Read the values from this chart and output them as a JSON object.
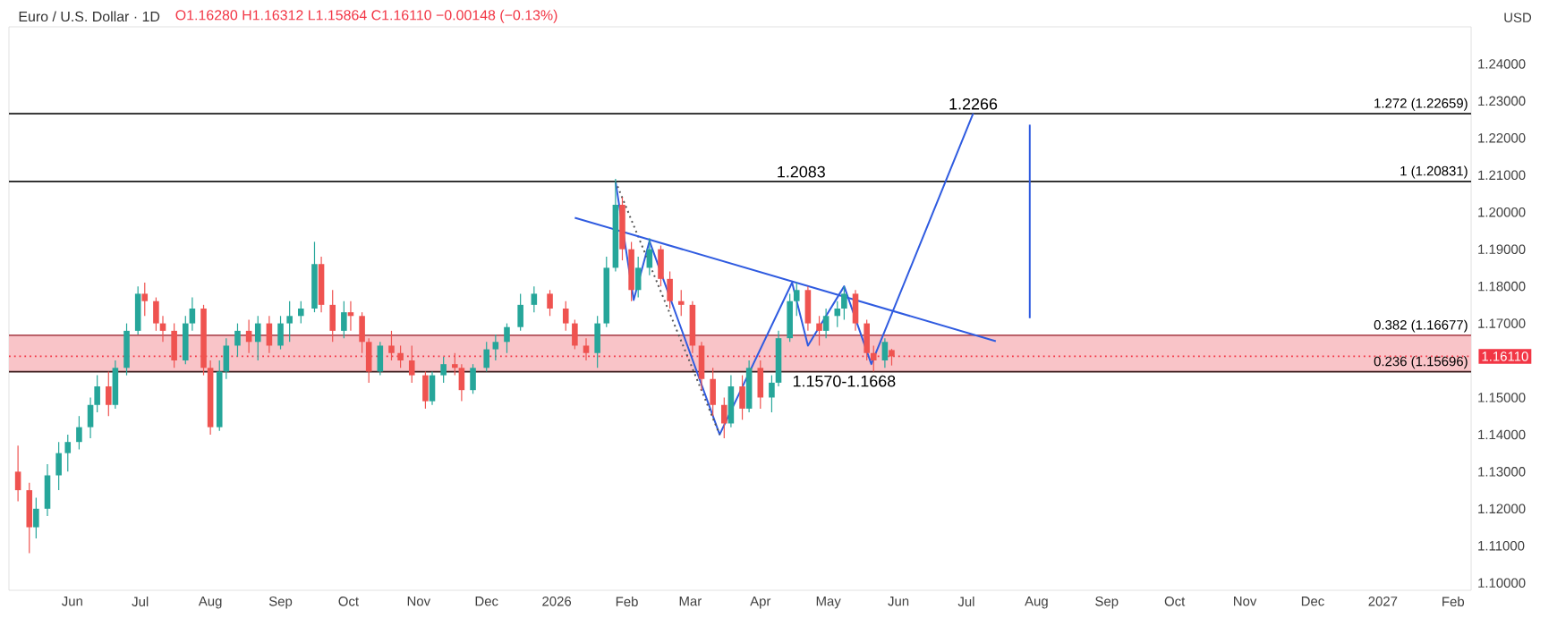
{
  "chart_data": {
    "type": "candlestick",
    "title": "Euro / U.S. Dollar · 1D",
    "subtitle": "O1.16280 H1.16312 L1.15864 C1.16110 −0.00148 (−0.13%)",
    "ylabel": "USD",
    "x": [
      "2025-05-08",
      "2025-05-13",
      "2025-05-16",
      "2025-05-21",
      "2025-05-26",
      "2025-05-30",
      "2025-06-04",
      "2025-06-09",
      "2025-06-12",
      "2025-06-17",
      "2025-06-20",
      "2025-06-25",
      "2025-06-30",
      "2025-07-03",
      "2025-07-08",
      "2025-07-11",
      "2025-07-16",
      "2025-07-21",
      "2025-07-24",
      "2025-07-29",
      "2025-08-01",
      "2025-08-05",
      "2025-08-08",
      "2025-08-13",
      "2025-08-18",
      "2025-08-22",
      "2025-08-27",
      "2025-09-01",
      "2025-09-05",
      "2025-09-10",
      "2025-09-16",
      "2025-09-19",
      "2025-09-24",
      "2025-09-29",
      "2025-10-02",
      "2025-10-07",
      "2025-10-10",
      "2025-10-15",
      "2025-10-20",
      "2025-10-24",
      "2025-10-29",
      "2025-11-04",
      "2025-11-07",
      "2025-11-12",
      "2025-11-17",
      "2025-11-20",
      "2025-11-25",
      "2025-12-01",
      "2025-12-05",
      "2025-12-10",
      "2025-12-16",
      "2025-12-22",
      "2025-12-29",
      "2026-01-05",
      "2026-01-09",
      "2026-01-14",
      "2026-01-19",
      "2026-01-23",
      "2026-01-27",
      "2026-01-30",
      "2026-02-03",
      "2026-02-06",
      "2026-02-11",
      "2026-02-16",
      "2026-02-20",
      "2026-02-25",
      "2026-03-02",
      "2026-03-06",
      "2026-03-11",
      "2026-03-16",
      "2026-03-19",
      "2026-03-24",
      "2026-03-27",
      "2026-04-01",
      "2026-04-06",
      "2026-04-09",
      "2026-04-14",
      "2026-04-17",
      "2026-04-22",
      "2026-04-27",
      "2026-04-30",
      "2026-05-05",
      "2026-05-08",
      "2026-05-13",
      "2026-05-18",
      "2026-05-21",
      "2026-05-26",
      "2026-05-29"
    ],
    "ohlc": [
      [
        1.13,
        1.137,
        1.122,
        1.125
      ],
      [
        1.125,
        1.127,
        1.108,
        1.115
      ],
      [
        1.115,
        1.123,
        1.112,
        1.12
      ],
      [
        1.12,
        1.132,
        1.118,
        1.129
      ],
      [
        1.129,
        1.138,
        1.125,
        1.135
      ],
      [
        1.135,
        1.14,
        1.13,
        1.138
      ],
      [
        1.138,
        1.145,
        1.136,
        1.142
      ],
      [
        1.142,
        1.15,
        1.139,
        1.148
      ],
      [
        1.148,
        1.156,
        1.146,
        1.153
      ],
      [
        1.153,
        1.157,
        1.145,
        1.148
      ],
      [
        1.148,
        1.16,
        1.147,
        1.158
      ],
      [
        1.158,
        1.17,
        1.156,
        1.168
      ],
      [
        1.168,
        1.18,
        1.167,
        1.178
      ],
      [
        1.178,
        1.181,
        1.172,
        1.176
      ],
      [
        1.176,
        1.177,
        1.168,
        1.17
      ],
      [
        1.17,
        1.172,
        1.165,
        1.168
      ],
      [
        1.168,
        1.17,
        1.158,
        1.16
      ],
      [
        1.16,
        1.172,
        1.159,
        1.17
      ],
      [
        1.17,
        1.177,
        1.168,
        1.174
      ],
      [
        1.174,
        1.175,
        1.156,
        1.158
      ],
      [
        1.158,
        1.16,
        1.14,
        1.142
      ],
      [
        1.142,
        1.16,
        1.141,
        1.157
      ],
      [
        1.157,
        1.166,
        1.155,
        1.164
      ],
      [
        1.164,
        1.17,
        1.161,
        1.168
      ],
      [
        1.168,
        1.171,
        1.162,
        1.165
      ],
      [
        1.165,
        1.172,
        1.16,
        1.17
      ],
      [
        1.17,
        1.172,
        1.162,
        1.164
      ],
      [
        1.164,
        1.172,
        1.163,
        1.17
      ],
      [
        1.17,
        1.176,
        1.165,
        1.172
      ],
      [
        1.172,
        1.176,
        1.17,
        1.174
      ],
      [
        1.174,
        1.192,
        1.173,
        1.186
      ],
      [
        1.186,
        1.188,
        1.173,
        1.175
      ],
      [
        1.175,
        1.179,
        1.165,
        1.168
      ],
      [
        1.168,
        1.176,
        1.166,
        1.173
      ],
      [
        1.173,
        1.176,
        1.168,
        1.172
      ],
      [
        1.172,
        1.173,
        1.162,
        1.165
      ],
      [
        1.165,
        1.166,
        1.154,
        1.157
      ],
      [
        1.157,
        1.165,
        1.156,
        1.164
      ],
      [
        1.164,
        1.168,
        1.16,
        1.162
      ],
      [
        1.162,
        1.164,
        1.158,
        1.16
      ],
      [
        1.16,
        1.164,
        1.154,
        1.156
      ],
      [
        1.156,
        1.157,
        1.147,
        1.149
      ],
      [
        1.149,
        1.157,
        1.148,
        1.156
      ],
      [
        1.156,
        1.161,
        1.154,
        1.159
      ],
      [
        1.159,
        1.162,
        1.156,
        1.158
      ],
      [
        1.158,
        1.159,
        1.149,
        1.152
      ],
      [
        1.152,
        1.159,
        1.151,
        1.158
      ],
      [
        1.158,
        1.165,
        1.157,
        1.163
      ],
      [
        1.163,
        1.167,
        1.16,
        1.165
      ],
      [
        1.165,
        1.17,
        1.162,
        1.169
      ],
      [
        1.169,
        1.178,
        1.168,
        1.175
      ],
      [
        1.175,
        1.18,
        1.173,
        1.178
      ],
      [
        1.178,
        1.179,
        1.172,
        1.174
      ],
      [
        1.174,
        1.176,
        1.168,
        1.17
      ],
      [
        1.17,
        1.171,
        1.163,
        1.164
      ],
      [
        1.164,
        1.166,
        1.16,
        1.162
      ],
      [
        1.162,
        1.172,
        1.158,
        1.17
      ],
      [
        1.17,
        1.188,
        1.169,
        1.185
      ],
      [
        1.185,
        1.209,
        1.184,
        1.202
      ],
      [
        1.202,
        1.204,
        1.187,
        1.19
      ],
      [
        1.19,
        1.192,
        1.176,
        1.179
      ],
      [
        1.179,
        1.188,
        1.177,
        1.185
      ],
      [
        1.185,
        1.193,
        1.183,
        1.19
      ],
      [
        1.19,
        1.191,
        1.18,
        1.182
      ],
      [
        1.182,
        1.184,
        1.174,
        1.176
      ],
      [
        1.176,
        1.179,
        1.172,
        1.175
      ],
      [
        1.175,
        1.176,
        1.162,
        1.164
      ],
      [
        1.164,
        1.165,
        1.152,
        1.155
      ],
      [
        1.155,
        1.158,
        1.145,
        1.148
      ],
      [
        1.148,
        1.15,
        1.139,
        1.143
      ],
      [
        1.143,
        1.156,
        1.142,
        1.153
      ],
      [
        1.153,
        1.156,
        1.144,
        1.147
      ],
      [
        1.147,
        1.16,
        1.146,
        1.158
      ],
      [
        1.158,
        1.16,
        1.147,
        1.15
      ],
      [
        1.15,
        1.156,
        1.146,
        1.154
      ],
      [
        1.154,
        1.168,
        1.153,
        1.166
      ],
      [
        1.166,
        1.178,
        1.165,
        1.176
      ],
      [
        1.176,
        1.181,
        1.172,
        1.179
      ],
      [
        1.179,
        1.18,
        1.168,
        1.17
      ],
      [
        1.17,
        1.172,
        1.164,
        1.168
      ],
      [
        1.168,
        1.174,
        1.166,
        1.172
      ],
      [
        1.172,
        1.176,
        1.169,
        1.174
      ],
      [
        1.174,
        1.18,
        1.171,
        1.178
      ],
      [
        1.178,
        1.179,
        1.168,
        1.17
      ],
      [
        1.17,
        1.171,
        1.16,
        1.162
      ],
      [
        1.162,
        1.164,
        1.157,
        1.16
      ],
      [
        1.16,
        1.166,
        1.158,
        1.165
      ],
      [
        1.1628,
        1.16312,
        1.15864,
        1.1611
      ]
    ],
    "colors": [
      "#ef5350",
      "#ef5350",
      "#26a69a",
      "#26a69a",
      "#26a69a",
      "#26a69a",
      "#26a69a",
      "#26a69a",
      "#26a69a",
      "#ef5350",
      "#26a69a",
      "#26a69a",
      "#26a69a",
      "#ef5350",
      "#ef5350",
      "#ef5350",
      "#ef5350",
      "#26a69a",
      "#26a69a",
      "#ef5350",
      "#ef5350",
      "#26a69a",
      "#26a69a",
      "#26a69a",
      "#ef5350",
      "#26a69a",
      "#ef5350",
      "#26a69a",
      "#26a69a",
      "#26a69a",
      "#26a69a",
      "#ef5350",
      "#ef5350",
      "#26a69a",
      "#ef5350",
      "#ef5350",
      "#ef5350",
      "#26a69a",
      "#ef5350",
      "#ef5350",
      "#ef5350",
      "#ef5350",
      "#26a69a",
      "#26a69a",
      "#ef5350",
      "#ef5350",
      "#26a69a",
      "#26a69a",
      "#26a69a",
      "#26a69a",
      "#26a69a",
      "#26a69a",
      "#ef5350",
      "#ef5350",
      "#ef5350",
      "#ef5350",
      "#26a69a",
      "#26a69a",
      "#26a69a",
      "#ef5350",
      "#ef5350",
      "#26a69a",
      "#26a69a",
      "#ef5350",
      "#ef5350",
      "#ef5350",
      "#ef5350",
      "#ef5350",
      "#ef5350",
      "#ef5350",
      "#26a69a",
      "#ef5350",
      "#26a69a",
      "#ef5350",
      "#26a69a",
      "#26a69a",
      "#26a69a",
      "#26a69a",
      "#ef5350",
      "#ef5350",
      "#26a69a",
      "#26a69a",
      "#26a69a",
      "#ef5350",
      "#ef5350",
      "#ef5350",
      "#26a69a",
      "#ef5350"
    ],
    "series": [
      {
        "type": "line",
        "color": "#2f5be0",
        "x": [
          "2026-01-27",
          "2026-02-04",
          "2026-02-11",
          "2026-03-14",
          "2026-04-15",
          "2026-04-22",
          "2026-05-08",
          "2026-05-20",
          "2026-07-04"
        ],
        "values": [
          1.2083,
          1.1763,
          1.1922,
          1.14,
          1.181,
          1.164,
          1.18,
          1.159,
          1.2266
        ]
      },
      {
        "type": "line",
        "color": "#555555",
        "line_style": "dotted",
        "x": [
          "2026-01-27",
          "2026-03-14"
        ],
        "values": [
          1.2083,
          1.14
        ]
      },
      {
        "type": "line",
        "color": "#2f5be0",
        "x": [
          "2026-01-09",
          "2026-07-14"
        ],
        "values": [
          1.1985,
          1.1652
        ]
      },
      {
        "type": "line",
        "color": "#2f5be0",
        "x": [
          "2026-07-29",
          "2026-07-29"
        ],
        "values": [
          1.2236,
          1.1714
        ]
      }
    ],
    "bands": [
      {
        "axis": "y",
        "from": 1.15696,
        "to": 1.16677,
        "color": "#f9c4c8"
      }
    ],
    "ref_lines": [
      {
        "axis": "y",
        "value": 1.22659,
        "label": "1.272 (1.22659)",
        "color": "#1a1a1a"
      },
      {
        "axis": "y",
        "value": 1.20831,
        "label": "1 (1.20831)",
        "color": "#1a1a1a"
      },
      {
        "axis": "y",
        "value": 1.16677,
        "label": "0.382 (1.16677)",
        "color": "#b05058"
      },
      {
        "axis": "y",
        "value": 1.15696,
        "label": "0.236 (1.15696)",
        "color": "#3a1a1a"
      },
      {
        "axis": "y",
        "value": 1.1611,
        "label": "1.16110",
        "color": "#f23645",
        "line_style": "dotted"
      }
    ],
    "annotations": [
      {
        "text": "1.2266",
        "x": "2026-07-04",
        "y": 1.2266
      },
      {
        "text": "1.2083",
        "x": "2026-04-19",
        "y": 1.2083
      },
      {
        "text": "1.1570-1.1668",
        "x": "2026-05-08",
        "y": 1.157
      }
    ],
    "xlim": [
      "2025-05-04",
      "2027-02-09"
    ],
    "xticks": [
      {
        "value": "2025-06-01",
        "label": "Jun"
      },
      {
        "value": "2025-07-01",
        "label": "Jul"
      },
      {
        "value": "2025-08-01",
        "label": "Aug"
      },
      {
        "value": "2025-09-01",
        "label": "Sep"
      },
      {
        "value": "2025-10-01",
        "label": "Oct"
      },
      {
        "value": "2025-11-01",
        "label": "Nov"
      },
      {
        "value": "2025-12-01",
        "label": "Dec"
      },
      {
        "value": "2026-01-01",
        "label": "2026"
      },
      {
        "value": "2026-02-01",
        "label": "Feb"
      },
      {
        "value": "2026-03-01",
        "label": "Mar"
      },
      {
        "value": "2026-04-01",
        "label": "Apr"
      },
      {
        "value": "2026-05-01",
        "label": "May"
      },
      {
        "value": "2026-06-01",
        "label": "Jun"
      },
      {
        "value": "2026-07-01",
        "label": "Jul"
      },
      {
        "value": "2026-08-01",
        "label": "Aug"
      },
      {
        "value": "2026-09-01",
        "label": "Sep"
      },
      {
        "value": "2026-10-01",
        "label": "Oct"
      },
      {
        "value": "2026-11-01",
        "label": "Nov"
      },
      {
        "value": "2026-12-01",
        "label": "Dec"
      },
      {
        "value": "2027-01-01",
        "label": "2027"
      },
      {
        "value": "2027-02-01",
        "label": "Feb"
      }
    ],
    "ylim": [
      1.098,
      1.25
    ],
    "yticks": [
      {
        "value": 1.1,
        "label": "1.10000"
      },
      {
        "value": 1.11,
        "label": "1.11000"
      },
      {
        "value": 1.12,
        "label": "1.12000"
      },
      {
        "value": 1.13,
        "label": "1.13000"
      },
      {
        "value": 1.14,
        "label": "1.14000"
      },
      {
        "value": 1.15,
        "label": "1.15000"
      },
      {
        "value": 1.17,
        "label": "1.17000"
      },
      {
        "value": 1.18,
        "label": "1.18000"
      },
      {
        "value": 1.19,
        "label": "1.19000"
      },
      {
        "value": 1.2,
        "label": "1.20000"
      },
      {
        "value": 1.21,
        "label": "1.21000"
      },
      {
        "value": 1.22,
        "label": "1.22000"
      },
      {
        "value": 1.23,
        "label": "1.23000"
      },
      {
        "value": 1.24,
        "label": "1.24000"
      }
    ]
  }
}
